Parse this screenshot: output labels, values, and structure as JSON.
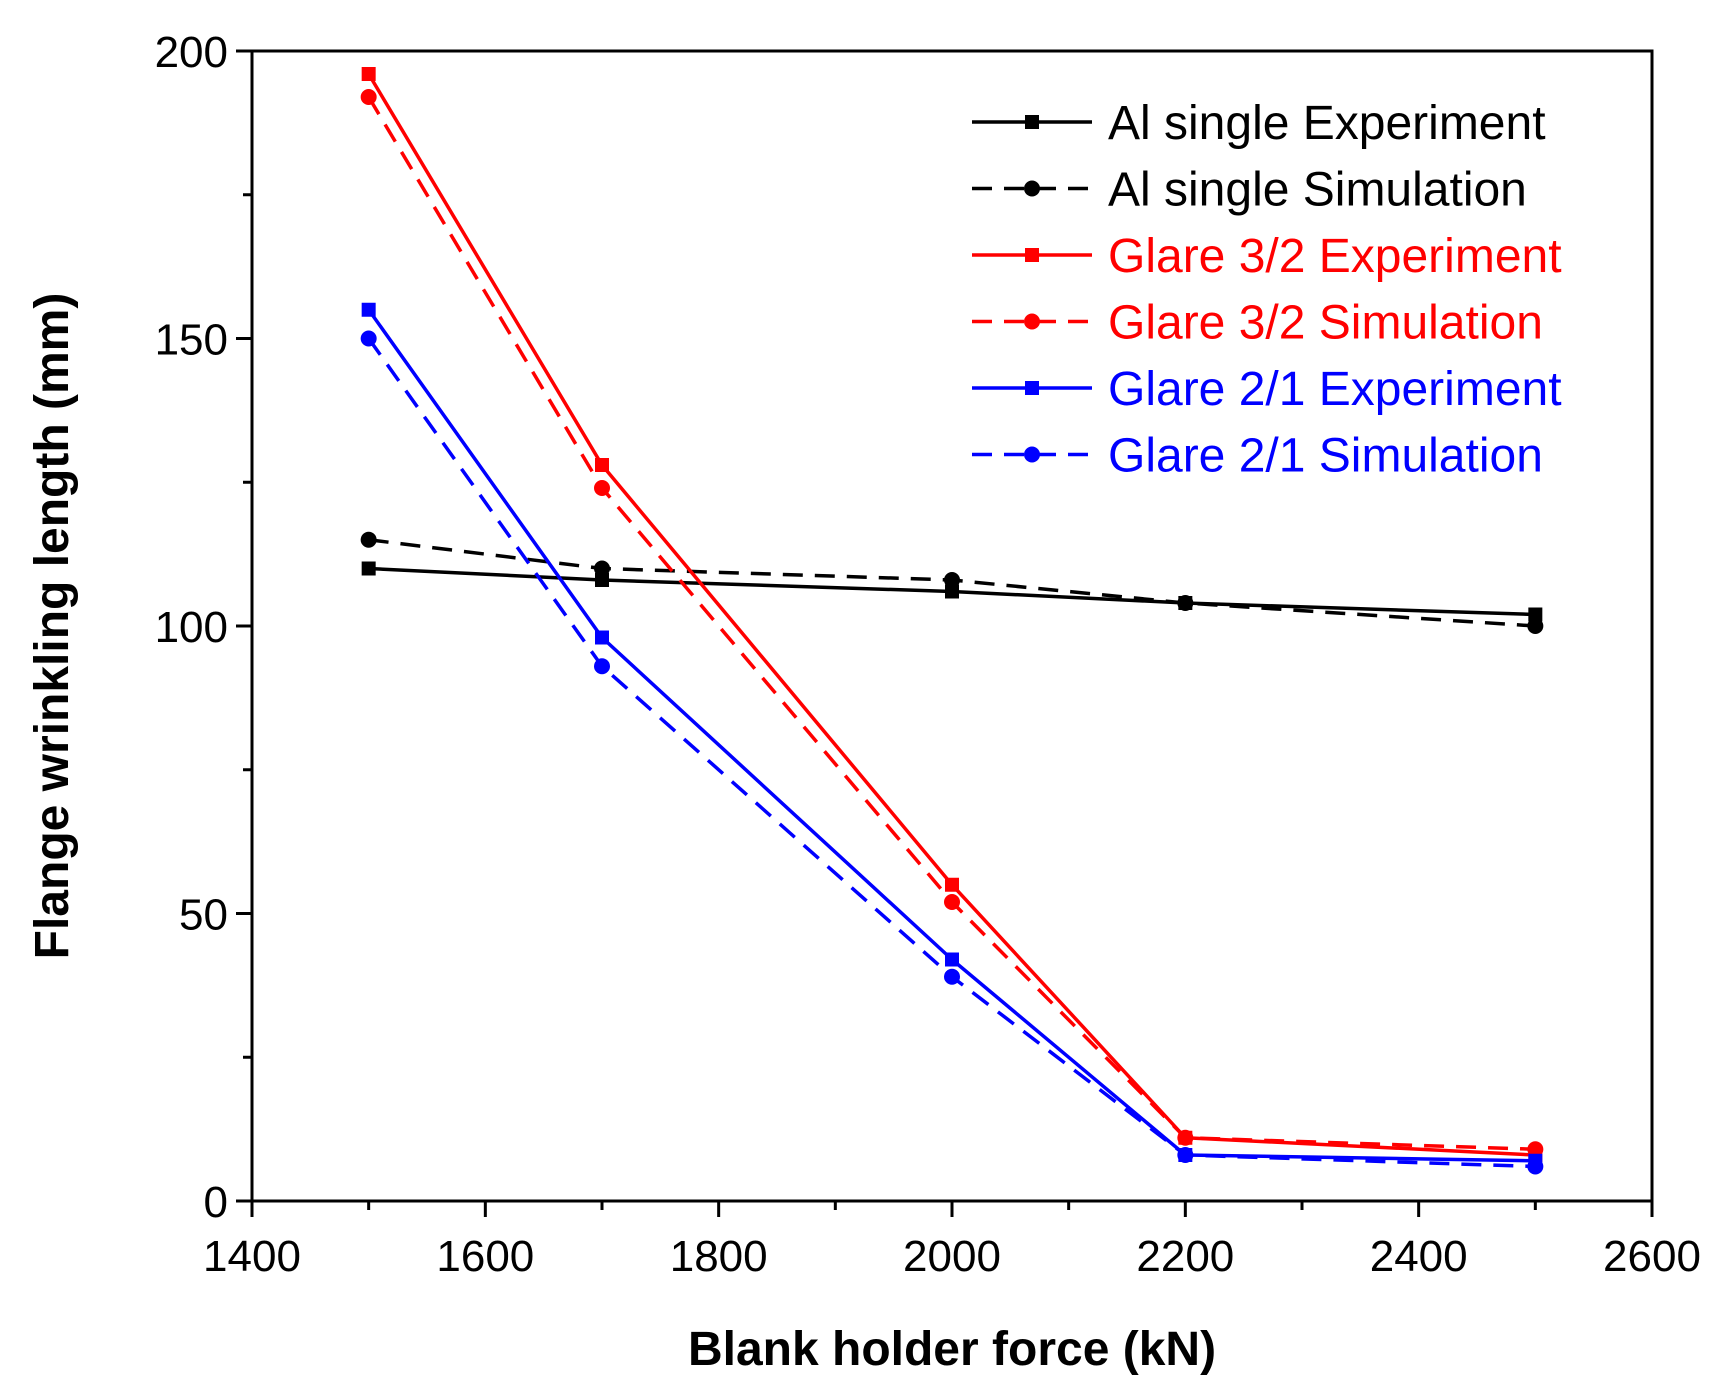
{
  "chart_data": {
    "type": "line",
    "title": "",
    "xlabel": "Blank holder force (kN)",
    "ylabel": "Flange wrinkling length (mm)",
    "xlim": [
      1400,
      2600
    ],
    "ylim": [
      0,
      200
    ],
    "x_major_ticks": [
      1400,
      1600,
      1800,
      2000,
      2200,
      2400,
      2600
    ],
    "x_tick_labels": [
      "1400",
      "1600",
      "1800",
      "2000",
      "2200",
      "2400",
      "2600"
    ],
    "x_minor_ticks": [
      1500,
      1700,
      1900,
      2100,
      2300,
      2500
    ],
    "y_major_ticks": [
      0,
      50,
      100,
      150,
      200
    ],
    "y_tick_labels": [
      "0",
      "50",
      "100",
      "150",
      "200"
    ],
    "y_minor_ticks": [
      25,
      75,
      125,
      175
    ],
    "grid": false,
    "legend_position": "top-right",
    "x": [
      1500,
      1700,
      2000,
      2200,
      2500
    ],
    "series": [
      {
        "name": "Al single Experiment",
        "color": "#000000",
        "dashed": false,
        "marker": "square",
        "values": [
          110,
          108,
          106,
          104,
          102
        ]
      },
      {
        "name": "Al single Simulation",
        "color": "#000000",
        "dashed": true,
        "marker": "circle",
        "values": [
          115,
          110,
          108,
          104,
          100
        ]
      },
      {
        "name": "Glare 3/2 Experiment",
        "color": "#ff0000",
        "dashed": false,
        "marker": "square",
        "values": [
          196,
          128,
          55,
          11,
          8
        ]
      },
      {
        "name": "Glare 3/2 Simulation",
        "color": "#ff0000",
        "dashed": true,
        "marker": "circle",
        "values": [
          192,
          124,
          52,
          11,
          9
        ]
      },
      {
        "name": "Glare 2/1 Experiment",
        "color": "#0000ff",
        "dashed": false,
        "marker": "square",
        "values": [
          155,
          98,
          42,
          8,
          7
        ]
      },
      {
        "name": "Glare 2/1 Simulation",
        "color": "#0000ff",
        "dashed": true,
        "marker": "circle",
        "values": [
          150,
          93,
          39,
          8,
          6
        ]
      }
    ]
  }
}
